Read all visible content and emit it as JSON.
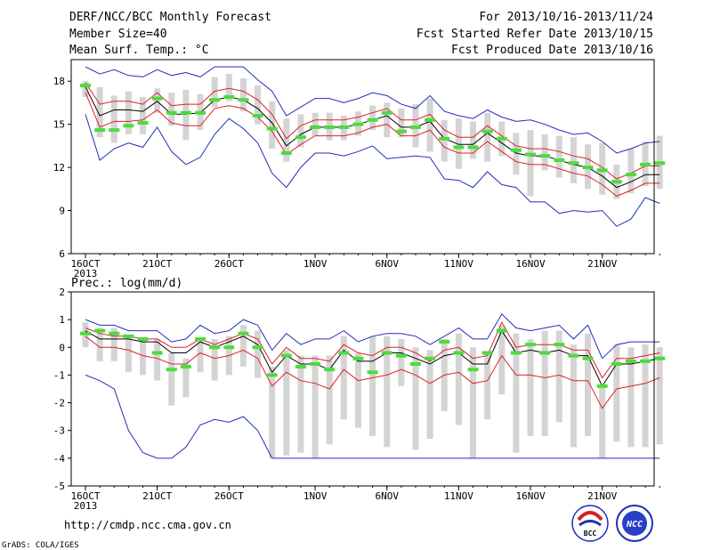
{
  "header": {
    "left": [
      "DERF/NCC/BCC Monthly Forecast",
      "Member Size=40",
      "Mean Surf. Temp.: °C"
    ],
    "right": [
      "For 2013/10/16-2013/11/24",
      "Fcst Started Refer Date 2013/10/15",
      "Fcst Produced Date 2013/10/16"
    ]
  },
  "footer": {
    "url": "http://cmdp.ncc.cma.gov.cn",
    "grads": "GrADS: COLA/IGES",
    "logo1_text": "BCC",
    "logo2_text": "NCC"
  },
  "colors": {
    "mean": "#000000",
    "spread": "#e0202a",
    "extreme": "#1f2fb5",
    "box": "#d4d4d4",
    "median": "#4cdc3c"
  },
  "chart_data": [
    {
      "type": "line",
      "title": "Mean Surf. Temp.: °C",
      "x_ticks": [
        "16OCT",
        "21OCT",
        "26OCT",
        "1NOV",
        "6NOV",
        "11NOV",
        "16NOV",
        "21NOV"
      ],
      "x_tick_days": [
        0,
        5,
        10,
        16,
        21,
        26,
        31,
        36
      ],
      "x_sublabel": "2013",
      "ylim": [
        6,
        19.5
      ],
      "yticks": [
        6,
        9,
        12,
        15,
        18
      ],
      "series": {
        "mean": [
          17.6,
          15.6,
          16.0,
          16.0,
          15.9,
          16.6,
          15.7,
          15.7,
          15.8,
          16.7,
          16.9,
          16.7,
          16.1,
          15.1,
          13.5,
          14.3,
          14.8,
          14.8,
          14.8,
          15.0,
          15.3,
          15.6,
          14.8,
          14.8,
          15.2,
          14.0,
          13.6,
          13.6,
          14.4,
          13.7,
          13.0,
          12.8,
          12.8,
          12.5,
          12.2,
          12.0,
          11.4,
          10.6,
          11.0,
          11.5,
          11.5
        ],
        "upper": [
          17.9,
          16.4,
          16.6,
          16.6,
          16.4,
          17.2,
          16.3,
          16.4,
          16.4,
          17.3,
          17.5,
          17.3,
          16.7,
          15.7,
          14.0,
          14.9,
          15.3,
          15.3,
          15.3,
          15.5,
          15.8,
          16.1,
          15.3,
          15.3,
          15.7,
          14.6,
          14.1,
          14.1,
          14.9,
          14.2,
          13.5,
          13.3,
          13.3,
          13.1,
          12.8,
          12.6,
          12.0,
          11.2,
          11.6,
          12.1,
          12.1
        ],
        "lower": [
          17.2,
          14.8,
          15.2,
          15.2,
          15.3,
          16.0,
          15.1,
          14.9,
          14.9,
          16.1,
          16.3,
          16.1,
          15.5,
          14.5,
          12.9,
          13.6,
          14.2,
          14.2,
          14.2,
          14.4,
          14.8,
          15.0,
          14.2,
          14.2,
          14.6,
          13.4,
          13.0,
          13.0,
          13.8,
          13.1,
          12.4,
          12.2,
          12.2,
          11.9,
          11.6,
          11.4,
          10.8,
          10.0,
          10.4,
          10.9,
          10.9
        ],
        "max": [
          19.0,
          18.5,
          18.8,
          18.4,
          18.3,
          18.8,
          18.4,
          18.6,
          18.3,
          19.0,
          19.0,
          19.0,
          18.1,
          17.3,
          15.6,
          16.2,
          16.8,
          16.8,
          16.5,
          16.8,
          17.2,
          17.0,
          16.4,
          16.1,
          17.0,
          15.9,
          15.6,
          15.4,
          16.0,
          15.5,
          15.2,
          15.3,
          15.0,
          14.6,
          14.3,
          14.4,
          13.8,
          13.0,
          13.3,
          13.7,
          13.8
        ],
        "min": [
          15.7,
          12.5,
          13.3,
          13.7,
          13.4,
          14.8,
          13.1,
          12.2,
          12.7,
          14.3,
          15.4,
          14.7,
          13.7,
          11.6,
          10.6,
          12.0,
          13.0,
          13.0,
          12.8,
          13.1,
          13.5,
          12.6,
          12.7,
          12.8,
          12.7,
          11.2,
          11.1,
          10.6,
          11.7,
          10.8,
          10.6,
          9.6,
          9.6,
          8.8,
          9.0,
          8.9,
          9.0,
          7.9,
          8.4,
          9.9,
          9.5
        ],
        "box_top": [
          18.0,
          17.6,
          17.0,
          17.3,
          16.9,
          17.5,
          17.2,
          17.4,
          17.1,
          18.3,
          18.5,
          18.2,
          17.7,
          16.6,
          15.4,
          15.7,
          15.8,
          15.8,
          15.6,
          15.9,
          16.3,
          16.5,
          16.1,
          16.4,
          16.8,
          15.3,
          15.4,
          15.2,
          15.8,
          15.2,
          14.4,
          14.6,
          14.3,
          14.2,
          14.1,
          13.6,
          13.7,
          12.2,
          13.3,
          13.8,
          14.2
        ],
        "box_bottom": [
          16.9,
          14.1,
          13.7,
          14.3,
          14.3,
          15.8,
          14.9,
          13.9,
          14.6,
          16.2,
          16.6,
          15.9,
          15.0,
          13.3,
          12.4,
          13.4,
          14.2,
          13.9,
          13.9,
          14.2,
          14.6,
          14.1,
          14.1,
          13.4,
          13.1,
          12.4,
          11.9,
          12.6,
          12.4,
          12.8,
          11.5,
          10.0,
          11.8,
          11.3,
          10.9,
          10.5,
          10.1,
          9.8,
          10.2,
          10.7,
          10.5
        ],
        "median": [
          17.7,
          14.6,
          14.6,
          14.9,
          15.1,
          16.8,
          15.8,
          15.8,
          15.8,
          16.7,
          16.9,
          16.7,
          15.6,
          14.7,
          13.0,
          14.1,
          14.8,
          14.8,
          14.8,
          15.0,
          15.3,
          15.8,
          14.5,
          14.8,
          15.3,
          14.0,
          13.4,
          13.4,
          14.5,
          14.0,
          13.2,
          12.9,
          12.8,
          12.5,
          12.3,
          12.0,
          11.8,
          11.0,
          11.5,
          12.2,
          12.3
        ]
      }
    },
    {
      "type": "line",
      "title": "Prec.: log(mm/d)",
      "x_ticks": [
        "16OCT",
        "21OCT",
        "26OCT",
        "1NOV",
        "6NOV",
        "11NOV",
        "16NOV",
        "21NOV"
      ],
      "x_tick_days": [
        0,
        5,
        10,
        16,
        21,
        26,
        31,
        36
      ],
      "x_sublabel": "2013",
      "ylim": [
        -5,
        2
      ],
      "yticks": [
        -5,
        -4,
        -3,
        -2,
        -1,
        0,
        1,
        2
      ],
      "series": {
        "mean": [
          0.6,
          0.3,
          0.3,
          0.3,
          0.2,
          0.2,
          -0.2,
          -0.2,
          0.2,
          0.0,
          0.2,
          0.4,
          0.1,
          -0.9,
          -0.3,
          -0.6,
          -0.6,
          -0.8,
          -0.1,
          -0.5,
          -0.5,
          -0.2,
          -0.2,
          -0.4,
          -0.6,
          -0.3,
          -0.2,
          -0.6,
          -0.6,
          0.6,
          -0.2,
          -0.1,
          -0.2,
          -0.1,
          -0.3,
          -0.3,
          -1.4,
          -0.6,
          -0.6,
          -0.5,
          -0.4
        ],
        "upper": [
          0.7,
          0.5,
          0.4,
          0.4,
          0.3,
          0.3,
          0.0,
          0.0,
          0.3,
          0.1,
          0.3,
          0.5,
          0.3,
          -0.6,
          0.0,
          -0.4,
          -0.4,
          -0.5,
          0.1,
          -0.2,
          -0.3,
          0.0,
          0.0,
          -0.2,
          -0.5,
          -0.1,
          0.0,
          -0.4,
          -0.3,
          0.9,
          0.0,
          0.1,
          0.1,
          0.1,
          -0.1,
          -0.1,
          -1.1,
          -0.4,
          -0.4,
          -0.3,
          -0.2
        ],
        "lower": [
          0.4,
          0.0,
          0.0,
          -0.1,
          -0.3,
          -0.4,
          -0.6,
          -0.6,
          -0.2,
          -0.4,
          -0.3,
          -0.1,
          -0.4,
          -1.4,
          -0.9,
          -1.2,
          -1.3,
          -1.5,
          -0.8,
          -1.2,
          -1.1,
          -1.0,
          -0.8,
          -1.0,
          -1.3,
          -1.0,
          -0.9,
          -1.3,
          -1.2,
          -0.3,
          -1.0,
          -1.0,
          -1.1,
          -1.0,
          -1.2,
          -1.2,
          -2.2,
          -1.5,
          -1.4,
          -1.3,
          -1.1
        ],
        "max": [
          1.0,
          0.8,
          0.8,
          0.6,
          0.6,
          0.6,
          0.2,
          0.3,
          0.8,
          0.5,
          0.6,
          1.0,
          0.8,
          -0.1,
          0.5,
          0.1,
          0.3,
          0.3,
          0.6,
          0.2,
          0.4,
          0.5,
          0.5,
          0.4,
          0.1,
          0.4,
          0.7,
          0.3,
          0.3,
          1.2,
          0.7,
          0.6,
          0.7,
          0.8,
          0.3,
          0.8,
          -0.4,
          0.1,
          0.2,
          0.2,
          0.2
        ],
        "min": [
          -1.0,
          -1.2,
          -1.5,
          -3.0,
          -3.8,
          -4.0,
          -4.0,
          -3.6,
          -2.8,
          -2.6,
          -2.7,
          -2.5,
          -3.0,
          -4.0,
          -4.0,
          -4.0,
          -4.0,
          -4.0,
          -4.0,
          -4.0,
          -4.0,
          -4.0,
          -4.0,
          -4.0,
          -4.0,
          -4.0,
          -4.0,
          -4.0,
          -4.0,
          -4.0,
          -4.0,
          -4.0,
          -4.0,
          -4.0,
          -4.0,
          -4.0,
          -4.0,
          -4.0,
          -4.0,
          -4.0,
          -4.0
        ],
        "box_top": [
          0.9,
          0.7,
          0.7,
          0.4,
          0.3,
          0.3,
          -0.2,
          -0.4,
          0.3,
          0.3,
          0.4,
          0.8,
          0.6,
          -0.7,
          -0.1,
          -0.3,
          -0.3,
          -0.3,
          0.4,
          -0.2,
          0.4,
          0.4,
          0.3,
          0.0,
          -0.1,
          0.3,
          0.5,
          0.0,
          -0.2,
          0.8,
          0.5,
          0.3,
          0.6,
          0.6,
          0.1,
          0.5,
          -1.4,
          0.1,
          0.0,
          0.1,
          0.0
        ],
        "box_bottom": [
          0.0,
          -0.5,
          -0.5,
          -0.9,
          -1.0,
          -1.2,
          -2.1,
          -1.8,
          -0.9,
          -1.2,
          -1.0,
          -0.7,
          -1.1,
          -4.0,
          -3.9,
          -3.8,
          -4.0,
          -3.5,
          -2.6,
          -2.9,
          -3.2,
          -3.6,
          -1.4,
          -3.7,
          -3.3,
          -2.3,
          -2.8,
          -4.0,
          -2.6,
          -1.7,
          -3.8,
          -3.2,
          -3.2,
          -2.7,
          -3.6,
          -3.2,
          -4.0,
          -3.4,
          -3.6,
          -3.6,
          -3.5
        ],
        "median": [
          0.5,
          0.6,
          0.5,
          0.4,
          0.3,
          -0.2,
          -0.8,
          -0.7,
          0.3,
          0.0,
          0.0,
          0.5,
          0.0,
          -1.0,
          -0.3,
          -0.7,
          -0.6,
          -0.8,
          -0.2,
          -0.4,
          -0.9,
          -0.2,
          -0.3,
          -0.6,
          -0.4,
          0.2,
          -0.2,
          -0.8,
          -0.2,
          0.6,
          -0.2,
          0.1,
          -0.2,
          0.1,
          -0.3,
          -0.4,
          -1.4,
          -0.6,
          -0.5,
          -0.5,
          -0.4
        ]
      }
    }
  ]
}
